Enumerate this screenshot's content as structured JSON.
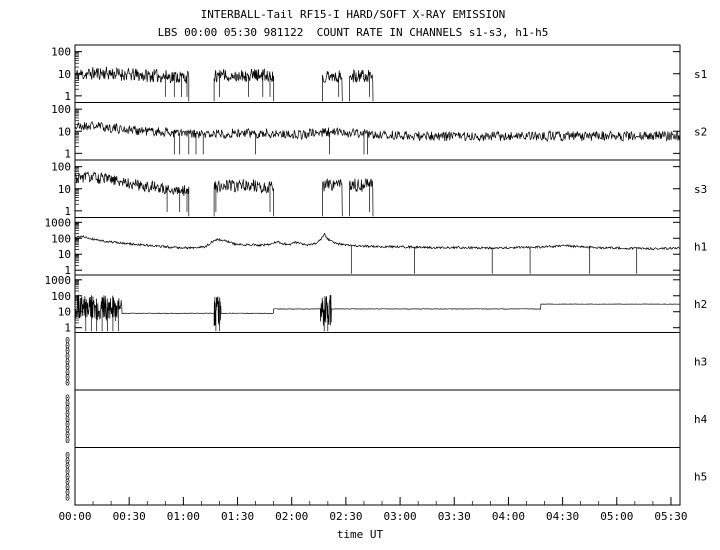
{
  "chart_data": {
    "type": "line",
    "title": "INTERBALL-Tail RF15-I HARD/SOFT X-RAY EMISSION",
    "subtitle": "LBS 00:00 05:30 981122  COUNT RATE IN CHANNELS s1-s3, h1-h5",
    "xlabel": "time UT",
    "x_ticks": [
      "00:00",
      "00:30",
      "01:00",
      "01:30",
      "02:00",
      "02:30",
      "03:00",
      "03:30",
      "04:00",
      "04:30",
      "05:00",
      "05:30"
    ],
    "x_tick_step_min": 30,
    "x_minor_step_min": 10,
    "x_range_min": [
      0,
      335
    ],
    "grid": false,
    "line_color": "#000000",
    "background": "#ffffff",
    "panels": [
      {
        "label": "s1",
        "scale": "log",
        "ymin": 0.5,
        "ymax": 200,
        "yticks": [
          1,
          10,
          100
        ],
        "segments": [
          {
            "t0": 0,
            "t1": 63,
            "levels": [
              [
                0,
                9
              ],
              [
                15,
                11
              ],
              [
                30,
                9
              ],
              [
                45,
                8
              ],
              [
                63,
                7
              ]
            ],
            "noise": 0.3,
            "step": 0.3,
            "edge": true,
            "down": [
              50,
              55,
              59,
              62
            ],
            "seed": 11
          },
          {
            "t0": 77,
            "t1": 110,
            "levels": [
              [
                77,
                8
              ],
              [
                95,
                9
              ],
              [
                110,
                8
              ]
            ],
            "noise": 0.3,
            "step": 0.3,
            "edge": true,
            "down": [
              80,
              96,
              104,
              108
            ],
            "seed": 12
          },
          {
            "t0": 137,
            "t1": 148,
            "levels": [
              [
                137,
                8
              ],
              [
                148,
                8
              ]
            ],
            "noise": 0.3,
            "step": 0.3,
            "edge": true,
            "down": [
              146
            ],
            "seed": 13
          },
          {
            "t0": 152,
            "t1": 165,
            "levels": [
              [
                152,
                8
              ],
              [
                165,
                8
              ]
            ],
            "noise": 0.3,
            "step": 0.3,
            "edge": true,
            "down": [
              163
            ],
            "seed": 14
          }
        ]
      },
      {
        "label": "s2",
        "scale": "log",
        "ymin": 0.5,
        "ymax": 200,
        "yticks": [
          1,
          10,
          100
        ],
        "segments": [
          {
            "t0": 0,
            "t1": 335,
            "levels": [
              [
                0,
                16
              ],
              [
                10,
                18
              ],
              [
                20,
                14
              ],
              [
                35,
                11
              ],
              [
                50,
                9
              ],
              [
                60,
                8
              ],
              [
                70,
                7
              ],
              [
                80,
                8
              ],
              [
                95,
                8
              ],
              [
                110,
                8
              ],
              [
                125,
                7
              ],
              [
                137,
                9
              ],
              [
                150,
                9
              ],
              [
                165,
                7
              ],
              [
                190,
                6
              ],
              [
                220,
                6
              ],
              [
                260,
                6
              ],
              [
                300,
                6
              ],
              [
                335,
                6
              ]
            ],
            "noise": 0.22,
            "step": 0.35,
            "down": [
              55,
              58,
              63,
              67,
              71,
              100,
              141,
              160,
              162
            ],
            "seed": 21
          }
        ]
      },
      {
        "label": "s3",
        "scale": "log",
        "ymin": 0.5,
        "ymax": 200,
        "yticks": [
          1,
          10,
          100
        ],
        "segments": [
          {
            "t0": 0,
            "t1": 63,
            "levels": [
              [
                0,
                30
              ],
              [
                8,
                35
              ],
              [
                20,
                25
              ],
              [
                35,
                15
              ],
              [
                50,
                10
              ],
              [
                63,
                8
              ]
            ],
            "noise": 0.26,
            "step": 0.3,
            "edge": true,
            "down": [
              51,
              58,
              62
            ],
            "seed": 31
          },
          {
            "t0": 77,
            "t1": 110,
            "levels": [
              [
                77,
                13
              ],
              [
                95,
                14
              ],
              [
                110,
                12
              ]
            ],
            "noise": 0.3,
            "step": 0.3,
            "edge": true,
            "down": [
              78,
              108
            ],
            "seed": 32
          },
          {
            "t0": 137,
            "t1": 148,
            "levels": [
              [
                137,
                15
              ],
              [
                148,
                15
              ]
            ],
            "noise": 0.3,
            "step": 0.3,
            "edge": true,
            "seed": 33
          },
          {
            "t0": 152,
            "t1": 165,
            "levels": [
              [
                152,
                15
              ],
              [
                165,
                14
              ]
            ],
            "noise": 0.3,
            "step": 0.3,
            "edge": true,
            "down": [
              163
            ],
            "seed": 34
          }
        ]
      },
      {
        "label": "h1",
        "scale": "log",
        "ymin": 0.5,
        "ymax": 2000,
        "yticks": [
          1,
          10,
          100,
          1000
        ],
        "segments": [
          {
            "t0": 0,
            "t1": 335,
            "levels": [
              [
                0,
                110
              ],
              [
                4,
                130
              ],
              [
                8,
                100
              ],
              [
                15,
                70
              ],
              [
                25,
                50
              ],
              [
                35,
                40
              ],
              [
                45,
                32
              ],
              [
                55,
                27
              ],
              [
                65,
                25
              ],
              [
                72,
                28
              ],
              [
                76,
                60
              ],
              [
                79,
                85
              ],
              [
                83,
                70
              ],
              [
                88,
                45
              ],
              [
                93,
                38
              ],
              [
                98,
                42
              ],
              [
                103,
                36
              ],
              [
                108,
                42
              ],
              [
                112,
                60
              ],
              [
                115,
                45
              ],
              [
                119,
                42
              ],
              [
                122,
                55
              ],
              [
                125,
                45
              ],
              [
                129,
                40
              ],
              [
                134,
                45
              ],
              [
                137,
                120
              ],
              [
                138,
                190
              ],
              [
                140,
                90
              ],
              [
                143,
                55
              ],
              [
                147,
                42
              ],
              [
                152,
                35
              ],
              [
                160,
                32
              ],
              [
                170,
                30
              ],
              [
                185,
                28
              ],
              [
                200,
                26
              ],
              [
                215,
                26
              ],
              [
                230,
                24
              ],
              [
                245,
                26
              ],
              [
                258,
                28
              ],
              [
                266,
                32
              ],
              [
                272,
                35
              ],
              [
                278,
                30
              ],
              [
                290,
                26
              ],
              [
                305,
                24
              ],
              [
                320,
                22
              ],
              [
                335,
                24
              ]
            ],
            "noise": 0.07,
            "step": 0.35,
            "down": [
              153,
              188,
              231,
              252,
              285,
              311
            ],
            "downv": 0.6,
            "seed": 41
          }
        ]
      },
      {
        "label": "h2",
        "scale": "log",
        "ymin": 0.5,
        "ymax": 2000,
        "yticks": [
          1,
          10,
          100,
          1000
        ],
        "connect": true,
        "segments": [
          {
            "t0": 0,
            "t1": 26,
            "levels": [
              [
                0,
                20
              ],
              [
                26,
                16
              ]
            ],
            "noise": 0.8,
            "step": 0.18,
            "down": [
              6,
              9,
              12,
              15,
              18,
              21,
              24
            ],
            "downv": 0.6,
            "seed": 51
          },
          {
            "t0": 26,
            "t1": 77,
            "levels": [
              [
                26,
                8
              ],
              [
                77,
                8
              ]
            ],
            "noise": 0.015,
            "step": 0.6,
            "seed": 52
          },
          {
            "t0": 77,
            "t1": 81,
            "levels": [
              [
                77,
                10
              ],
              [
                81,
                10
              ]
            ],
            "noise": 1.0,
            "step": 0.15,
            "down": [
              78,
              80
            ],
            "downv": 0.6,
            "seed": 53
          },
          {
            "t0": 81,
            "t1": 110,
            "levels": [
              [
                81,
                8
              ],
              [
                110,
                8
              ]
            ],
            "noise": 0.015,
            "step": 0.6,
            "seed": 54
          },
          {
            "t0": 110,
            "t1": 136,
            "levels": [
              [
                110,
                15
              ],
              [
                136,
                15
              ]
            ],
            "noise": 0.012,
            "step": 0.6,
            "seed": 55
          },
          {
            "t0": 136,
            "t1": 142,
            "levels": [
              [
                136,
                12
              ],
              [
                142,
                12
              ]
            ],
            "noise": 1.0,
            "step": 0.15,
            "down": [
              138,
              140
            ],
            "downv": 0.6,
            "seed": 56
          },
          {
            "t0": 142,
            "t1": 258,
            "levels": [
              [
                142,
                15
              ],
              [
                258,
                15
              ]
            ],
            "noise": 0.012,
            "step": 0.6,
            "seed": 57
          },
          {
            "t0": 258,
            "t1": 335,
            "levels": [
              [
                258,
                30
              ],
              [
                335,
                30
              ]
            ],
            "noise": 0.01,
            "step": 0.6,
            "seed": 58
          }
        ]
      },
      {
        "label": "h3",
        "scale": "zeros",
        "zeros": 9,
        "segments": []
      },
      {
        "label": "h4",
        "scale": "zeros",
        "zeros": 9,
        "segments": []
      },
      {
        "label": "h5",
        "scale": "zeros",
        "zeros": 9,
        "segments": []
      }
    ]
  }
}
